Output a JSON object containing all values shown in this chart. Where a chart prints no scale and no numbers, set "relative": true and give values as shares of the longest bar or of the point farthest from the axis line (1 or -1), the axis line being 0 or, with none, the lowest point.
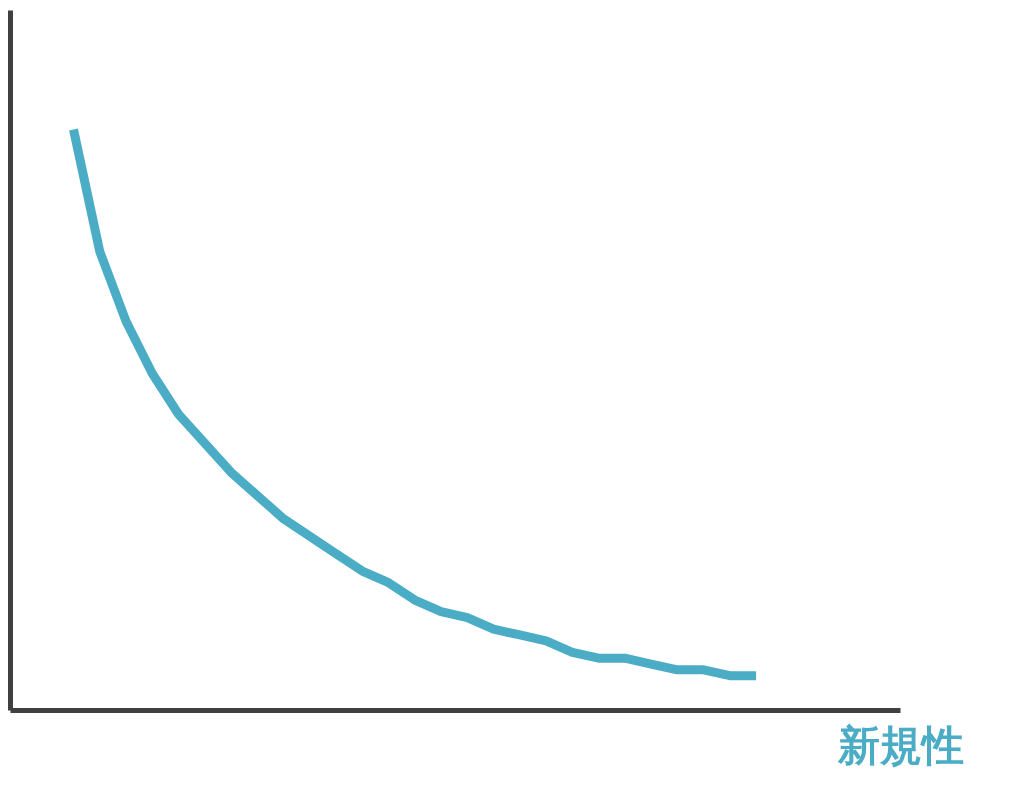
{
  "chart_data": {
    "type": "line",
    "relative": true,
    "xlabel": "新規性",
    "tick_labels": false,
    "categories": [
      null,
      null,
      null,
      null,
      null,
      null,
      null,
      null,
      null,
      null,
      null,
      null,
      null,
      null,
      null,
      null,
      null,
      null,
      null,
      null,
      null,
      null,
      null,
      null,
      null,
      null,
      null
    ],
    "series": [
      {
        "color": "#4bacc6",
        "values": [
          1.0,
          0.79,
          0.67,
          0.58,
          0.51,
          0.46,
          0.41,
          0.37,
          0.33,
          0.3,
          0.27,
          0.24,
          0.22,
          0.19,
          0.17,
          0.16,
          0.14,
          0.13,
          0.12,
          0.1,
          0.09,
          0.09,
          0.08,
          0.07,
          0.07,
          0.06,
          0.06
        ]
      }
    ]
  }
}
